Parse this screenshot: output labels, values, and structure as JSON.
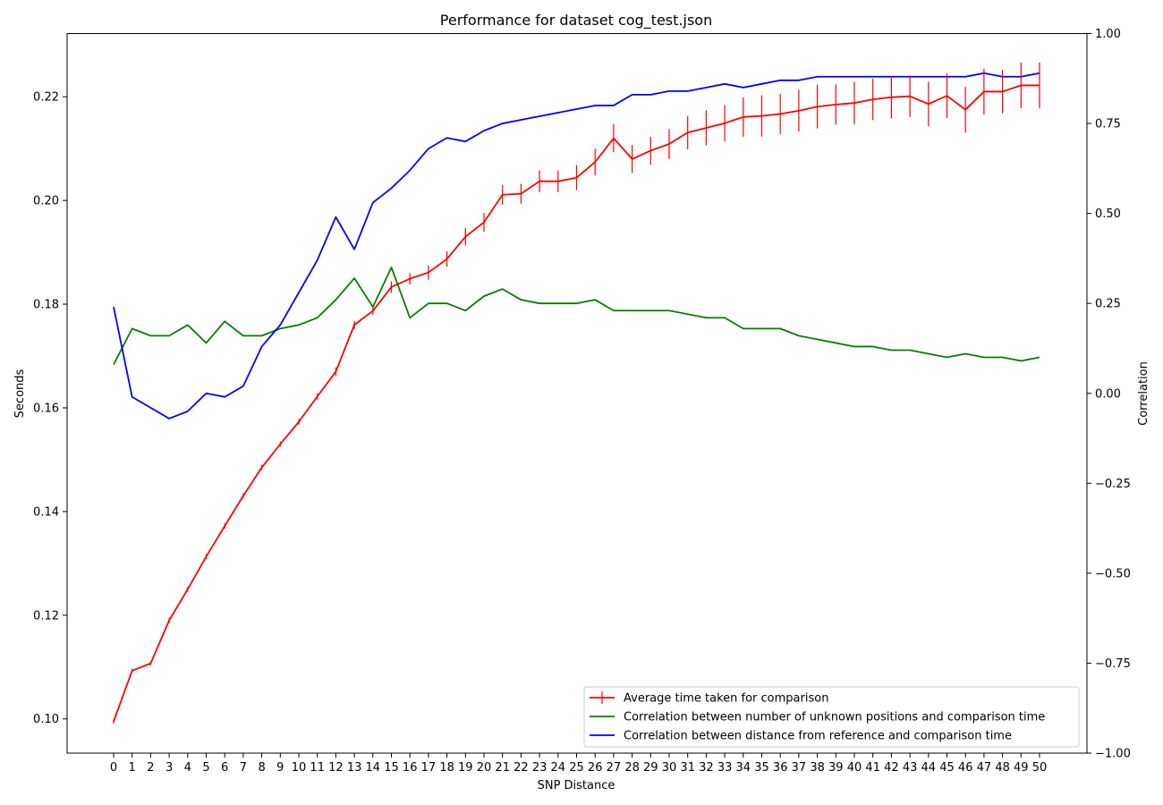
{
  "chart_data": {
    "type": "line",
    "title": "Performance for dataset cog_test.json",
    "xlabel": "SNP Distance",
    "ylabel_left": "Seconds",
    "ylabel_right": "Correlation",
    "x": [
      0,
      1,
      2,
      3,
      4,
      5,
      6,
      7,
      8,
      9,
      10,
      11,
      12,
      13,
      14,
      15,
      16,
      17,
      18,
      19,
      20,
      21,
      22,
      23,
      24,
      25,
      26,
      27,
      28,
      29,
      30,
      31,
      32,
      33,
      34,
      35,
      36,
      37,
      38,
      39,
      40,
      41,
      42,
      43,
      44,
      45,
      46,
      47,
      48,
      49,
      50
    ],
    "ylim_left": [
      0.0934,
      0.2322
    ],
    "ylim_right": [
      -1.0,
      1.0
    ],
    "yticks_left": [
      "0.10",
      "0.12",
      "0.14",
      "0.16",
      "0.18",
      "0.20",
      "0.22"
    ],
    "yticks_right": [
      "1.00",
      "0.75",
      "0.50",
      "0.25",
      "0.00",
      "−0.25",
      "−0.50",
      "−0.75",
      "−1.00"
    ],
    "grid": false,
    "legend_position": "lower-right",
    "series": [
      {
        "name": "Average time taken for comparison",
        "axis": "left",
        "color": "#ff0000",
        "errorbars": true,
        "values": [
          0.0995,
          0.1093,
          0.1107,
          0.119,
          0.125,
          0.1313,
          0.1372,
          0.143,
          0.1485,
          0.153,
          0.1573,
          0.1622,
          0.167,
          0.176,
          0.1787,
          0.1833,
          0.1849,
          0.1861,
          0.1887,
          0.193,
          0.1958,
          0.2011,
          0.2013,
          0.2037,
          0.2037,
          0.2044,
          0.2074,
          0.212,
          0.208,
          0.2096,
          0.2109,
          0.2131,
          0.214,
          0.2149,
          0.2161,
          0.2163,
          0.2167,
          0.2173,
          0.2181,
          0.2185,
          0.2188,
          0.2195,
          0.2199,
          0.2201,
          0.2186,
          0.2202,
          0.2175,
          0.221,
          0.221,
          0.2222,
          0.2222
        ],
        "errors": [
          0.0004,
          0.0004,
          0.0004,
          0.0005,
          0.0005,
          0.0005,
          0.0005,
          0.0005,
          0.0005,
          0.0005,
          0.0006,
          0.0006,
          0.0008,
          0.0008,
          0.0008,
          0.0011,
          0.0011,
          0.0014,
          0.0015,
          0.0017,
          0.0018,
          0.0019,
          0.0019,
          0.0021,
          0.0021,
          0.0024,
          0.0026,
          0.0027,
          0.0027,
          0.0027,
          0.0029,
          0.0032,
          0.0034,
          0.0035,
          0.0038,
          0.004,
          0.0039,
          0.004,
          0.0042,
          0.0039,
          0.0041,
          0.004,
          0.0041,
          0.004,
          0.0043,
          0.0043,
          0.0044,
          0.0044,
          0.0042,
          0.0044,
          0.0044
        ]
      },
      {
        "name": "Correlation between number of unknown positions and comparison time",
        "axis": "right",
        "color": "#008000",
        "values": [
          0.08,
          0.18,
          0.16,
          0.16,
          0.19,
          0.14,
          0.2,
          0.16,
          0.16,
          0.18,
          0.19,
          0.21,
          0.26,
          0.32,
          0.24,
          0.35,
          0.21,
          0.25,
          0.25,
          0.23,
          0.27,
          0.29,
          0.26,
          0.25,
          0.25,
          0.25,
          0.26,
          0.23,
          0.23,
          0.23,
          0.23,
          0.22,
          0.21,
          0.21,
          0.18,
          0.18,
          0.18,
          0.16,
          0.15,
          0.14,
          0.13,
          0.13,
          0.12,
          0.12,
          0.11,
          0.1,
          0.11,
          0.1,
          0.1,
          0.09,
          0.1
        ]
      },
      {
        "name": "Correlation between distance from reference and comparison time",
        "axis": "right",
        "color": "#0000ff",
        "values": [
          0.24,
          -0.01,
          -0.04,
          -0.07,
          -0.05,
          0.0,
          -0.01,
          0.02,
          0.13,
          0.19,
          0.28,
          0.37,
          0.49,
          0.4,
          0.53,
          0.57,
          0.62,
          0.68,
          0.71,
          0.7,
          0.73,
          0.75,
          0.76,
          0.77,
          0.78,
          0.79,
          0.8,
          0.8,
          0.83,
          0.83,
          0.84,
          0.84,
          0.85,
          0.86,
          0.85,
          0.86,
          0.87,
          0.87,
          0.88,
          0.88,
          0.88,
          0.88,
          0.88,
          0.88,
          0.88,
          0.88,
          0.88,
          0.89,
          0.88,
          0.88,
          0.89
        ]
      }
    ]
  }
}
